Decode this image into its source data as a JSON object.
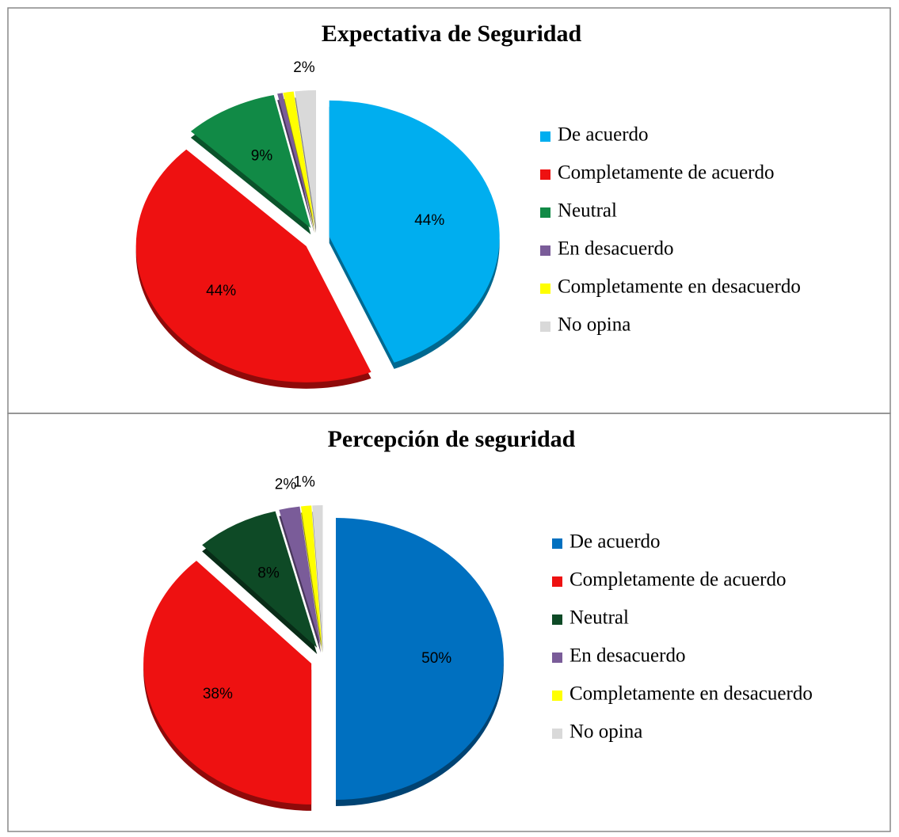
{
  "chart_data": [
    {
      "type": "pie",
      "title": "Expectativa de Seguridad",
      "categories": [
        "De acuerdo",
        "Completamente de acuerdo",
        "Neutral",
        "En desacuerdo",
        "Completamente en desacuerdo",
        "No opina"
      ],
      "values": [
        44,
        44,
        9,
        0.5,
        1,
        2
      ],
      "value_labels": [
        "44%",
        "44%",
        "9%",
        null,
        null,
        "2%"
      ],
      "colors": [
        "#00aeef",
        "#ee1111",
        "#118a46",
        "#7a5c99",
        "#ffff00",
        "#d9d9d9"
      ],
      "legend": "right"
    },
    {
      "type": "pie",
      "title": "Percepción de seguridad",
      "categories": [
        "De acuerdo",
        "Completamente de acuerdo",
        "Neutral",
        "En desacuerdo",
        "Completamente en desacuerdo",
        "No opina"
      ],
      "values": [
        50,
        38,
        8,
        2,
        1,
        1
      ],
      "value_labels": [
        "50%",
        "38%",
        "8%",
        "2%",
        "1%",
        null
      ],
      "colors": [
        "#0070c0",
        "#ee1111",
        "#0e4a26",
        "#7a5c99",
        "#ffff00",
        "#d9d9d9"
      ],
      "legend": "right"
    }
  ]
}
